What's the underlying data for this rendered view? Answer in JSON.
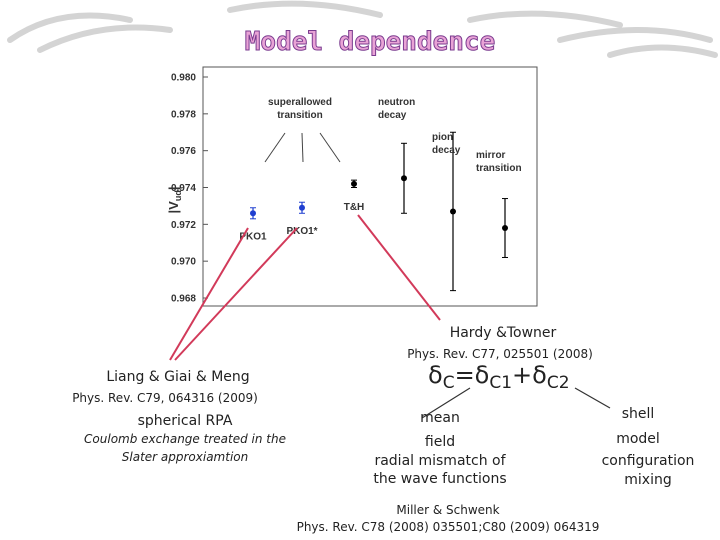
{
  "title": "Model dependence",
  "hardy": {
    "name": "Hardy &Towner",
    "ref": "Phys. Rev. C77, 025501 (2008)"
  },
  "liang": {
    "name": "Liang & Giai & Meng",
    "ref": "Phys. Rev. C79, 064316 (2009)",
    "method": "spherical RPA",
    "note": [
      "Coulomb exchange treated in the",
      "Slater approxiamtion"
    ]
  },
  "formula": [
    "δ",
    "C",
    "=δ",
    "C1",
    "+δ",
    "C2"
  ],
  "mean_field": {
    "name": [
      "mean",
      "field"
    ],
    "desc": [
      "radial mismatch of",
      "the wave functions"
    ]
  },
  "shell_model": {
    "name": [
      "shell",
      "model"
    ],
    "desc": [
      "configuration",
      "mixing"
    ]
  },
  "miller": {
    "name": "Miller & Schwenk",
    "ref": "Phys. Rev. C78 (2008) 035501;C80 (2009) 064319"
  },
  "chart_data": {
    "type": "errorbar",
    "ylabel": [
      "|V",
      "ud",
      "|"
    ],
    "categories": [
      "PKO1",
      "PKO1*",
      "T&H",
      null,
      null,
      null
    ],
    "values": [
      0.9726,
      0.9729,
      0.9742,
      0.9745,
      0.9727,
      0.9718
    ],
    "errors": [
      0.0003,
      0.0003,
      0.0002,
      0.0019,
      0.0043,
      0.0016
    ],
    "colors": [
      "#1f3fd0",
      "#1f3fd0",
      "#000000",
      "#000000",
      "#000000",
      "#000000"
    ],
    "annotations": [
      [
        "superallowed",
        "transition"
      ],
      [
        "neutron",
        "decay"
      ],
      [
        "pion",
        "decay"
      ],
      [
        "mirror",
        "transition"
      ]
    ],
    "ylim": [
      0.968,
      0.98
    ],
    "yticks": [
      {
        "value": 0.968,
        "label": "0.968"
      },
      {
        "value": 0.97,
        "label": "0.970"
      },
      {
        "value": 0.972,
        "label": "0.972"
      },
      {
        "value": 0.974,
        "label": "0.974"
      },
      {
        "value": 0.976,
        "label": "0.976"
      },
      {
        "value": 0.978,
        "label": "0.978"
      },
      {
        "value": 0.98,
        "label": "0.980"
      }
    ]
  }
}
